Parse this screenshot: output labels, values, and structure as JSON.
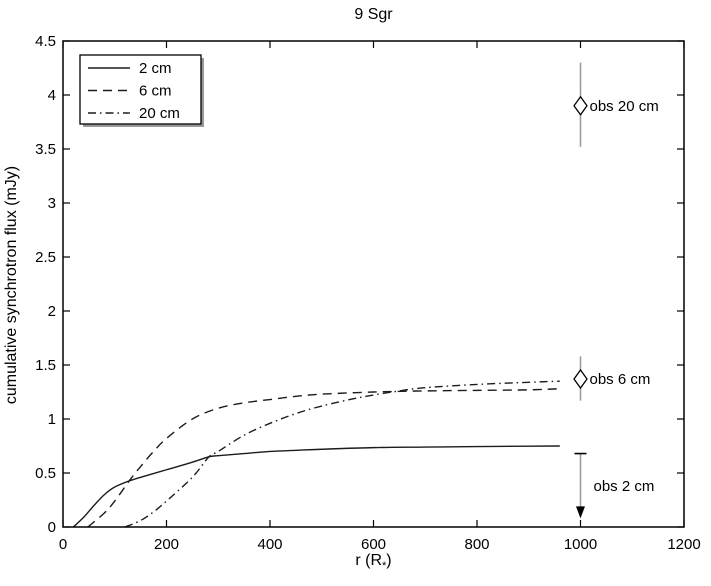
{
  "colors": {
    "axis": "#000000",
    "curve": "#1c1c1c",
    "errorbar": "#9c9c9c",
    "legend_shadow": "#999999",
    "background": "#ffffff"
  },
  "chart_data": {
    "type": "line",
    "title": "9 Sgr",
    "ylabel": "cumulative synchrotron flux (mJy)",
    "xlabel_parts": {
      "prefix": "r (R",
      "sub": "*",
      "suffix": ")"
    },
    "xlim": [
      0,
      1200
    ],
    "ylim": [
      0,
      4.5
    ],
    "xticks": [
      0,
      200,
      400,
      600,
      800,
      1000,
      1200
    ],
    "yticks": [
      0,
      0.5,
      1,
      1.5,
      2,
      2.5,
      3,
      3.5,
      4,
      4.5
    ],
    "grid": false,
    "legend": {
      "position": "top-left",
      "entries": [
        {
          "label": "2 cm",
          "style": "solid"
        },
        {
          "label": "6 cm",
          "style": "dashed"
        },
        {
          "label": "20 cm",
          "style": "dashdot"
        }
      ]
    },
    "series": [
      {
        "name": "2 cm",
        "style": "solid",
        "points": [
          [
            20,
            0
          ],
          [
            40,
            0.09
          ],
          [
            60,
            0.2
          ],
          [
            80,
            0.3
          ],
          [
            100,
            0.37
          ],
          [
            130,
            0.43
          ],
          [
            150,
            0.46
          ],
          [
            200,
            0.53
          ],
          [
            250,
            0.6
          ],
          [
            282,
            0.65
          ],
          [
            300,
            0.66
          ],
          [
            350,
            0.68
          ],
          [
            400,
            0.7
          ],
          [
            450,
            0.71
          ],
          [
            500,
            0.72
          ],
          [
            600,
            0.735
          ],
          [
            700,
            0.74
          ],
          [
            800,
            0.745
          ],
          [
            900,
            0.748
          ],
          [
            960,
            0.75
          ]
        ]
      },
      {
        "name": "6 cm",
        "style": "dashed",
        "points": [
          [
            48,
            0
          ],
          [
            80,
            0.13
          ],
          [
            100,
            0.24
          ],
          [
            130,
            0.44
          ],
          [
            150,
            0.56
          ],
          [
            175,
            0.7
          ],
          [
            200,
            0.82
          ],
          [
            250,
            1.0
          ],
          [
            300,
            1.1
          ],
          [
            350,
            1.15
          ],
          [
            400,
            1.18
          ],
          [
            450,
            1.21
          ],
          [
            500,
            1.23
          ],
          [
            600,
            1.25
          ],
          [
            700,
            1.26
          ],
          [
            800,
            1.265
          ],
          [
            900,
            1.27
          ],
          [
            960,
            1.28
          ]
        ]
      },
      {
        "name": "20 cm",
        "style": "dashdot",
        "points": [
          [
            120,
            0
          ],
          [
            150,
            0.06
          ],
          [
            175,
            0.14
          ],
          [
            200,
            0.24
          ],
          [
            250,
            0.46
          ],
          [
            282,
            0.65
          ],
          [
            300,
            0.7
          ],
          [
            350,
            0.85
          ],
          [
            400,
            0.96
          ],
          [
            450,
            1.05
          ],
          [
            500,
            1.12
          ],
          [
            574,
            1.2
          ],
          [
            650,
            1.26
          ],
          [
            700,
            1.29
          ],
          [
            800,
            1.32
          ],
          [
            900,
            1.34
          ],
          [
            960,
            1.35
          ]
        ]
      }
    ],
    "observations": [
      {
        "label": "obs 20 cm",
        "x": 1000,
        "y": 3.9,
        "err_lo": 3.52,
        "err_hi": 4.3,
        "marker": "diamond"
      },
      {
        "label": "obs 6 cm",
        "x": 1000,
        "y": 1.37,
        "err_lo": 1.17,
        "err_hi": 1.58,
        "marker": "diamond"
      },
      {
        "label": "obs 2 cm",
        "x": 1000,
        "type": "upper_limit",
        "top": 0.68,
        "tip": 0.08,
        "marker": "down-arrow"
      }
    ]
  }
}
